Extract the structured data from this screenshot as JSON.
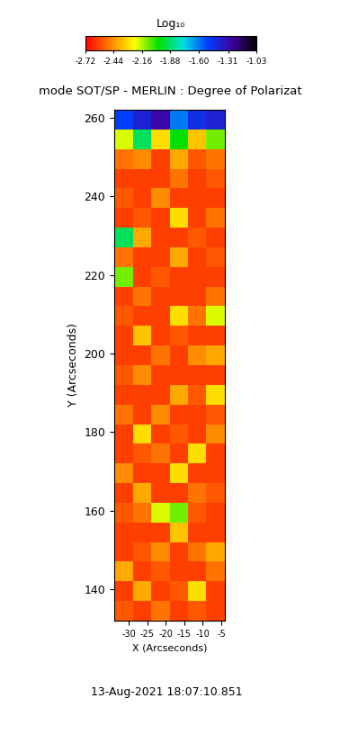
{
  "chart_data": {
    "type": "heatmap",
    "title": "mode SOT/SP - MERLIN : Degree of Polarizat",
    "x_label": "X (Arcseconds)",
    "y_label": "Y (Arcseconds)",
    "date": "13-Aug-2021 18:07:10.851",
    "colorbar_label": "Log₁₀",
    "colorbar_range": [
      -2.72,
      -1.03
    ],
    "colorbar_ticks": [
      -2.72,
      -2.44,
      -2.16,
      -1.88,
      {
        "value": -1.6,
        "label": "-1.60"
      },
      -1.31,
      -1.03
    ],
    "xlim": [
      -34,
      -4
    ],
    "xticks": [
      -30,
      -25,
      -20,
      -15,
      -10,
      -5
    ],
    "ylim": [
      132,
      262
    ],
    "yticks": [
      140,
      160,
      180,
      200,
      220,
      240,
      260
    ],
    "x": [
      -31.5,
      -26.5,
      -21.5,
      -16.5,
      -11.5,
      -6.5
    ],
    "y": [
      134.5,
      139.5,
      144.5,
      149.5,
      154.5,
      159.5,
      164.5,
      169.5,
      174.5,
      179.5,
      184.5,
      189.5,
      194.5,
      199.5,
      204.5,
      209.5,
      214.5,
      219.5,
      224.5,
      229.5,
      234.5,
      239.5,
      244.5,
      249.5,
      254.5,
      259.5
    ],
    "cells": [
      [
        -2.55,
        -2.6,
        -2.5,
        -2.6,
        -2.55,
        -2.6
      ],
      [
        -2.6,
        -2.4,
        -2.6,
        -2.55,
        -2.3,
        -2.6
      ],
      [
        -2.4,
        -2.6,
        -2.55,
        -2.6,
        -2.6,
        -2.5
      ],
      [
        -2.6,
        -2.55,
        -2.45,
        -2.6,
        -2.5,
        -2.4
      ],
      [
        -2.6,
        -2.6,
        -2.6,
        -2.35,
        -2.6,
        -2.6
      ],
      [
        -2.55,
        -2.5,
        -2.2,
        -2.1,
        -2.55,
        -2.6
      ],
      [
        -2.6,
        -2.4,
        -2.6,
        -2.6,
        -2.5,
        -2.55
      ],
      [
        -2.45,
        -2.6,
        -2.6,
        -2.3,
        -2.6,
        -2.6
      ],
      [
        -2.6,
        -2.55,
        -2.5,
        -2.6,
        -2.3,
        -2.6
      ],
      [
        -2.6,
        -2.3,
        -2.6,
        -2.55,
        -2.6,
        -2.45
      ],
      [
        -2.5,
        -2.6,
        -2.45,
        -2.6,
        -2.6,
        -2.55
      ],
      [
        -2.6,
        -2.6,
        -2.6,
        -2.4,
        -2.55,
        -2.3
      ],
      [
        -2.55,
        -2.45,
        -2.6,
        -2.6,
        -2.6,
        -2.6
      ],
      [
        -2.6,
        -2.6,
        -2.5,
        -2.6,
        -2.45,
        -2.4
      ],
      [
        -2.6,
        -2.35,
        -2.6,
        -2.55,
        -2.6,
        -2.6
      ],
      [
        -2.55,
        -2.6,
        -2.6,
        -2.3,
        -2.5,
        -2.2
      ],
      [
        -2.6,
        -2.5,
        -2.6,
        -2.6,
        -2.6,
        -2.5
      ],
      [
        -2.1,
        -2.6,
        -2.55,
        -2.6,
        -2.6,
        -2.6
      ],
      [
        -2.5,
        -2.6,
        -2.6,
        -2.4,
        -2.6,
        -2.55
      ],
      [
        -1.9,
        -2.4,
        -2.6,
        -2.6,
        -2.55,
        -2.6
      ],
      [
        -2.6,
        -2.55,
        -2.6,
        -2.3,
        -2.6,
        -2.5
      ],
      [
        -2.55,
        -2.6,
        -2.45,
        -2.6,
        -2.6,
        -2.6
      ],
      [
        -2.6,
        -2.6,
        -2.6,
        -2.5,
        -2.6,
        -2.55
      ],
      [
        -2.5,
        -2.45,
        -2.6,
        -2.4,
        -2.55,
        -2.5
      ],
      [
        -2.2,
        -1.9,
        -2.3,
        -2.0,
        -2.35,
        -2.1
      ],
      [
        -1.5,
        -1.4,
        -1.3,
        -1.6,
        -1.45,
        -1.4
      ]
    ]
  }
}
